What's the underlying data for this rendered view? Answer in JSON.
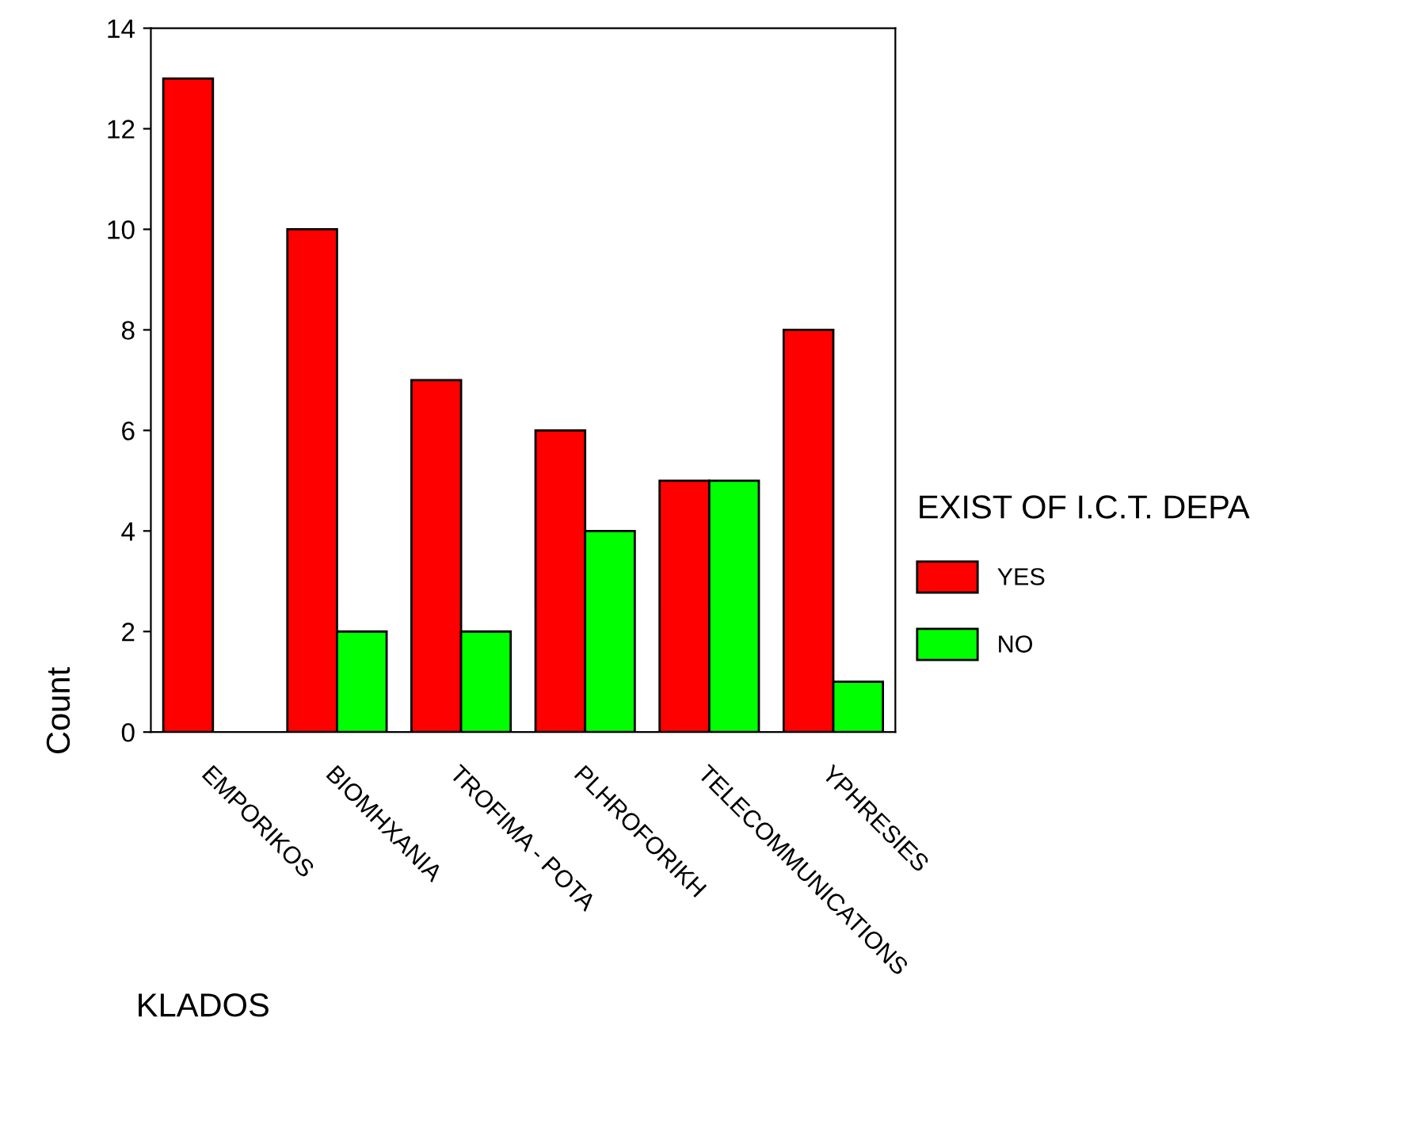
{
  "chart_data": {
    "type": "bar",
    "xlabel": "KLADOS",
    "ylabel": "Count",
    "legend_title": "EXIST OF I.C.T. DEPA",
    "categories": [
      "EMPORIKOS",
      "BIOMHXANIA",
      "TROFIMA - POTA",
      "PLHROFORIKH",
      "TELECOMMUNICATIONS",
      "YPHRESIES"
    ],
    "series": [
      {
        "name": "YES",
        "color": "#ff0000",
        "values": [
          13,
          10,
          7,
          6,
          5,
          8
        ]
      },
      {
        "name": "NO",
        "color": "#00ff00",
        "values": [
          null,
          2,
          2,
          4,
          5,
          1
        ]
      }
    ],
    "ylim": [
      0,
      14
    ],
    "yticks": [
      0,
      2,
      4,
      6,
      8,
      10,
      12,
      14
    ],
    "grid": false,
    "legend": "right"
  }
}
